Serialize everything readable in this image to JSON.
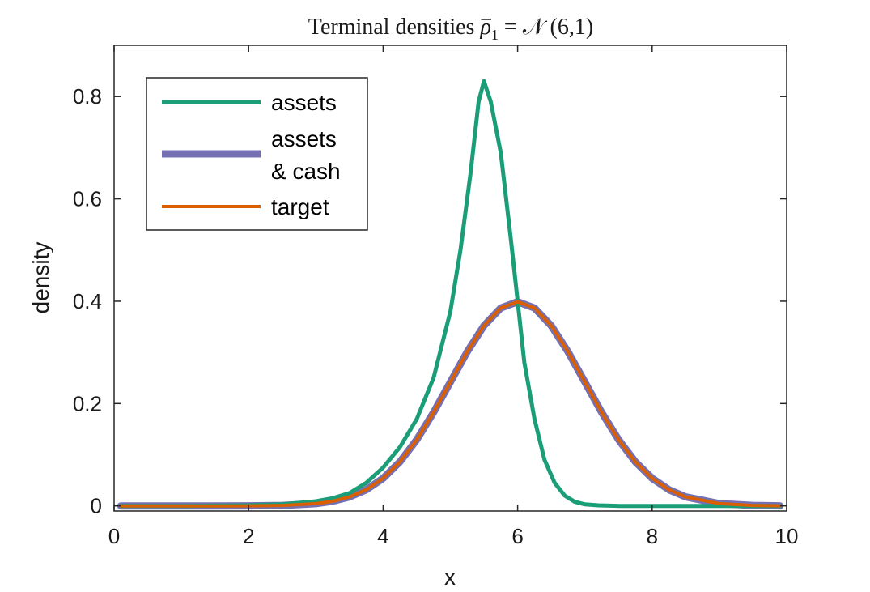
{
  "chart_data": {
    "type": "line",
    "title_prefix": "Terminal densities ",
    "title_rho": "ρ",
    "title_rho_sub": "1",
    "title_equals": " = ",
    "title_dist": "𝒩",
    "title_params": " (6,1)",
    "xlabel": "x",
    "ylabel": "density",
    "xlim": [
      0,
      10
    ],
    "ylim": [
      -0.01,
      0.9
    ],
    "xticks": [
      0,
      2,
      4,
      6,
      8,
      10
    ],
    "xtick_labels": [
      "0",
      "2",
      "4",
      "6",
      "8",
      "10"
    ],
    "yticks": [
      0,
      0.2,
      0.4,
      0.6,
      0.8
    ],
    "ytick_labels": [
      "0",
      "0.2",
      "0.4",
      "0.6",
      "0.8"
    ],
    "grid": false,
    "legend_placement": "top-left",
    "series": [
      {
        "name": "assets",
        "color": "#1b9e77",
        "x": [
          0.1,
          1.0,
          2.0,
          2.5,
          3.0,
          3.25,
          3.5,
          3.75,
          4.0,
          4.25,
          4.5,
          4.75,
          5.0,
          5.15,
          5.3,
          5.42,
          5.5,
          5.6,
          5.75,
          5.9,
          6.0,
          6.1,
          6.25,
          6.4,
          6.55,
          6.7,
          6.85,
          7.0,
          7.2,
          7.5,
          8.0,
          9.0,
          9.9
        ],
        "y": [
          0.0,
          0.0,
          0.001,
          0.003,
          0.009,
          0.015,
          0.025,
          0.045,
          0.075,
          0.115,
          0.17,
          0.25,
          0.38,
          0.5,
          0.65,
          0.79,
          0.83,
          0.79,
          0.69,
          0.52,
          0.4,
          0.28,
          0.17,
          0.09,
          0.045,
          0.02,
          0.008,
          0.003,
          0.001,
          0.0,
          0.0,
          0.0,
          0.0
        ]
      },
      {
        "name": "assets\n& cash",
        "name_lines": [
          "assets",
          "& cash"
        ],
        "color": "#7570b3",
        "x": [
          0.1,
          0.5,
          1.0,
          1.5,
          2.0,
          2.5,
          3.0,
          3.25,
          3.5,
          3.75,
          4.0,
          4.25,
          4.5,
          4.75,
          5.0,
          5.25,
          5.5,
          5.75,
          6.0,
          6.25,
          6.5,
          6.75,
          7.0,
          7.25,
          7.5,
          7.75,
          8.0,
          8.25,
          8.5,
          9.0,
          9.5,
          9.9
        ],
        "y": [
          0.0,
          0.0,
          0.0,
          0.0,
          0.0001,
          0.0009,
          0.0044,
          0.0092,
          0.0175,
          0.0317,
          0.054,
          0.0863,
          0.1295,
          0.1826,
          0.242,
          0.3011,
          0.3521,
          0.3867,
          0.3989,
          0.3867,
          0.3521,
          0.3011,
          0.242,
          0.1826,
          0.1295,
          0.0863,
          0.054,
          0.0317,
          0.0175,
          0.0044,
          0.0009,
          0.0002
        ]
      },
      {
        "name": "target",
        "color": "#d95f02",
        "x": [
          0.1,
          0.5,
          1.0,
          1.5,
          2.0,
          2.5,
          3.0,
          3.25,
          3.5,
          3.75,
          4.0,
          4.25,
          4.5,
          4.75,
          5.0,
          5.25,
          5.5,
          5.75,
          6.0,
          6.25,
          6.5,
          6.75,
          7.0,
          7.25,
          7.5,
          7.75,
          8.0,
          8.25,
          8.5,
          9.0,
          9.5,
          9.9
        ],
        "y": [
          0.0,
          0.0,
          0.0,
          0.0,
          0.0001,
          0.0009,
          0.0044,
          0.0092,
          0.0175,
          0.0317,
          0.054,
          0.0863,
          0.1295,
          0.1826,
          0.242,
          0.3011,
          0.3521,
          0.3867,
          0.3989,
          0.3867,
          0.3521,
          0.3011,
          0.242,
          0.1826,
          0.1295,
          0.0863,
          0.054,
          0.0317,
          0.0175,
          0.0044,
          0.0009,
          0.0002
        ]
      }
    ]
  }
}
